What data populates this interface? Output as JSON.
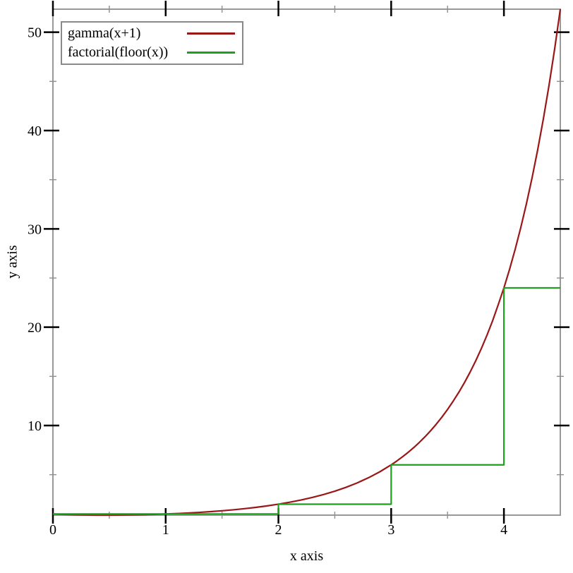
{
  "figure": {
    "background": "#ffffff",
    "frame_color": "#999999",
    "major_tick_color": "#000000",
    "minor_tick_color": "#8f8f8f",
    "text_color": "#000000"
  },
  "chart_data": {
    "type": "line",
    "title": "",
    "xlabel": "x axis",
    "ylabel": "y axis",
    "xlim": [
      0,
      4.5
    ],
    "ylim": [
      0.8856,
      52.3428
    ],
    "grid": false,
    "legend_position": "top-left",
    "x_major_ticks": [
      0,
      1,
      2,
      3,
      4
    ],
    "x_major_tick_labels": [
      "0",
      "1",
      "2",
      "3",
      "4"
    ],
    "x_minor_ticks": [
      0.5,
      1.5,
      2.5,
      3.5
    ],
    "y_major_ticks": [
      10,
      20,
      30,
      40,
      50
    ],
    "y_major_tick_labels": [
      "10",
      "20",
      "30",
      "40",
      "50"
    ],
    "y_minor_ticks": [
      5,
      15,
      25,
      35,
      45
    ],
    "series": [
      {
        "name": "gamma(x+1)",
        "color": "#9a1717",
        "style": "solid",
        "points": [
          [
            0,
            1
          ],
          [
            0.1,
            0.9514
          ],
          [
            0.2,
            0.9182
          ],
          [
            0.3,
            0.8975
          ],
          [
            0.4,
            0.8873
          ],
          [
            0.5,
            0.8862
          ],
          [
            0.6,
            0.8935
          ],
          [
            0.7,
            0.9086
          ],
          [
            0.8,
            0.9314
          ],
          [
            0.9,
            0.9618
          ],
          [
            1.0,
            1
          ],
          [
            1.1,
            1.0465
          ],
          [
            1.2,
            1.1018
          ],
          [
            1.3,
            1.1667
          ],
          [
            1.4,
            1.2422
          ],
          [
            1.5,
            1.3293
          ],
          [
            1.6,
            1.4296
          ],
          [
            1.7,
            1.5447
          ],
          [
            1.8,
            1.6765
          ],
          [
            1.9,
            1.8274
          ],
          [
            2.0,
            2
          ],
          [
            2.1,
            2.1976
          ],
          [
            2.2,
            2.424
          ],
          [
            2.3,
            2.6834
          ],
          [
            2.4,
            2.9812
          ],
          [
            2.5,
            3.3234
          ],
          [
            2.6,
            3.717
          ],
          [
            2.7,
            4.1707
          ],
          [
            2.8,
            4.6942
          ],
          [
            2.9,
            5.2993
          ],
          [
            3.0,
            6
          ],
          [
            3.05,
            6.3912
          ],
          [
            3.1,
            6.8126
          ],
          [
            3.15,
            7.2669
          ],
          [
            3.2,
            7.7567
          ],
          [
            3.25,
            8.2851
          ],
          [
            3.3,
            8.8553
          ],
          [
            3.35,
            9.471
          ],
          [
            3.4,
            10.1361
          ],
          [
            3.45,
            10.8548
          ],
          [
            3.5,
            11.6317
          ],
          [
            3.55,
            12.4783
          ],
          [
            3.6,
            13.3813
          ],
          [
            3.65,
            14.3655
          ],
          [
            3.7,
            15.4314
          ],
          [
            3.75,
            16.5862
          ],
          [
            3.8,
            17.8379
          ],
          [
            3.85,
            19.1951
          ],
          [
            3.9,
            20.6674
          ],
          [
            3.95,
            22.3032
          ],
          [
            4.0,
            24
          ],
          [
            4.05,
            25.8843
          ],
          [
            4.1,
            27.9318
          ],
          [
            4.15,
            30.1575
          ],
          [
            4.2,
            32.5781
          ],
          [
            4.25,
            35.2116
          ],
          [
            4.3,
            38.078
          ],
          [
            4.35,
            41.199
          ],
          [
            4.4,
            44.5989
          ],
          [
            4.45,
            48.3037
          ],
          [
            4.5,
            52.3428
          ]
        ]
      },
      {
        "name": "factorial(floor(x))",
        "color": "#1da11d",
        "style": "solid",
        "points": [
          [
            0,
            1
          ],
          [
            2,
            1
          ],
          [
            2,
            2
          ],
          [
            3,
            2
          ],
          [
            3,
            6
          ],
          [
            4,
            6
          ],
          [
            4,
            24
          ],
          [
            4.5,
            24
          ]
        ]
      }
    ]
  }
}
